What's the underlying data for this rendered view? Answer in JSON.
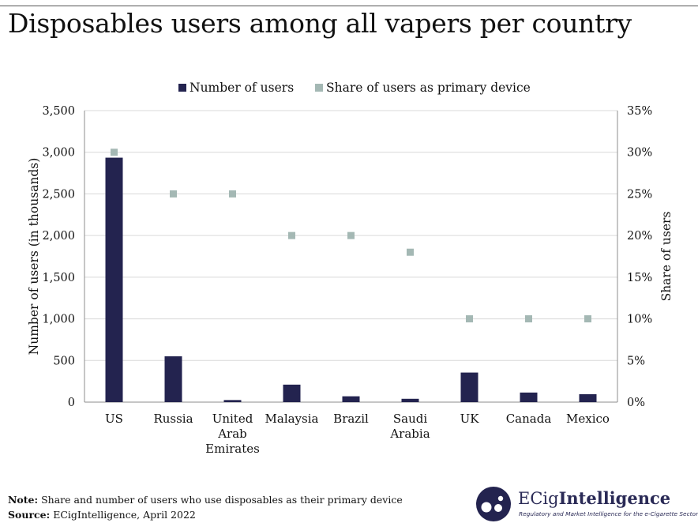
{
  "title": "Disposables users among all vapers per country",
  "chart_data": {
    "type": "bar",
    "categories": [
      "US",
      "Russia",
      "United Arab Emirates",
      "Malaysia",
      "Brazil",
      "Saudi Arabia",
      "UK",
      "Canada",
      "Mexico"
    ],
    "category_lines": [
      [
        "US"
      ],
      [
        "Russia"
      ],
      [
        "United",
        "Arab",
        "Emirates"
      ],
      [
        "Malaysia"
      ],
      [
        "Brazil"
      ],
      [
        "Saudi",
        "Arabia"
      ],
      [
        "UK"
      ],
      [
        "Canada"
      ],
      [
        "Mexico"
      ]
    ],
    "series": [
      {
        "name": "Number of users",
        "type": "bar",
        "axis": "left",
        "color": "#23234f",
        "values": [
          2935,
          550,
          25,
          210,
          70,
          40,
          355,
          115,
          95
        ]
      },
      {
        "name": "Share of users as primary device",
        "type": "scatter",
        "axis": "right",
        "color": "#a4b8b4",
        "values": [
          30,
          25,
          25,
          20,
          20,
          18,
          10,
          10,
          10
        ]
      }
    ],
    "ylabel": "Number of users (in thousands)",
    "y2label": "Share of users",
    "ylim": [
      0,
      3500
    ],
    "y2lim": [
      0,
      35
    ],
    "yticks": [
      "0",
      "500",
      "1,000",
      "1,500",
      "2,000",
      "2,500",
      "3,000",
      "3,500"
    ],
    "y2ticks": [
      "0%",
      "5%",
      "10%",
      "15%",
      "20%",
      "25%",
      "30%",
      "35%"
    ],
    "grid": true,
    "legend": "top-center"
  },
  "footer": {
    "note_label": "Note:",
    "note_text": " Share and number of users who use disposables as their primary device",
    "source_label": "Source:",
    "source_text": " ECigIntelligence, April 2022"
  },
  "logo": {
    "name_prefix": "ECig",
    "name_suffix": "Intelligence",
    "tagline": "Regulatory and Market Intelligence for the e-Cigarette Sector"
  }
}
